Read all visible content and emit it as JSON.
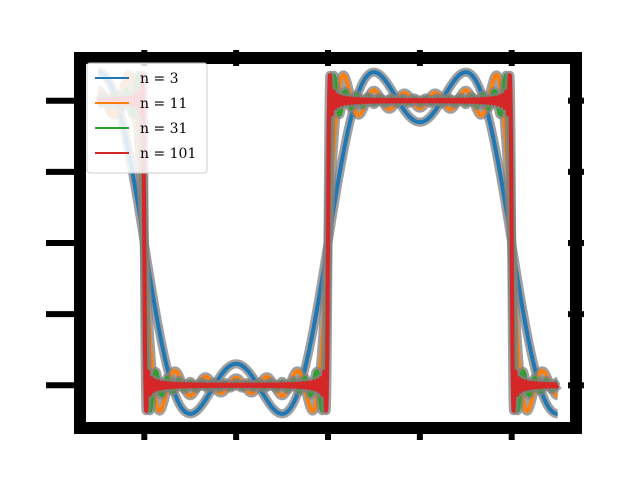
{
  "chart_data": {
    "type": "line",
    "title": "",
    "xlabel": "",
    "ylabel": "",
    "xlim": [
      -2.2,
      3.2
    ],
    "ylim": [
      -1.3,
      1.3
    ],
    "x_ticks": [
      -1.5,
      -0.5,
      0.5,
      1.5,
      2.5
    ],
    "y_ticks": [
      -1,
      -0.5,
      0,
      0.5,
      1
    ],
    "x_tick_labels": [],
    "y_tick_labels": [],
    "domain": [
      -2.0,
      3.0
    ],
    "function": "partial Fourier sum of a square wave (odd harmonics 1..n), period 4, jump at x = 0.5",
    "grid": false,
    "legend_position": "top-left",
    "series": [
      {
        "name": "n = 3",
        "n": 3,
        "color": "#1f77b4"
      },
      {
        "name": "n = 11",
        "n": 11,
        "color": "#ff7f0e"
      },
      {
        "name": "n = 31",
        "n": 31,
        "color": "#2ca02c"
      },
      {
        "name": "n = 101",
        "n": 101,
        "color": "#d62728"
      }
    ]
  }
}
